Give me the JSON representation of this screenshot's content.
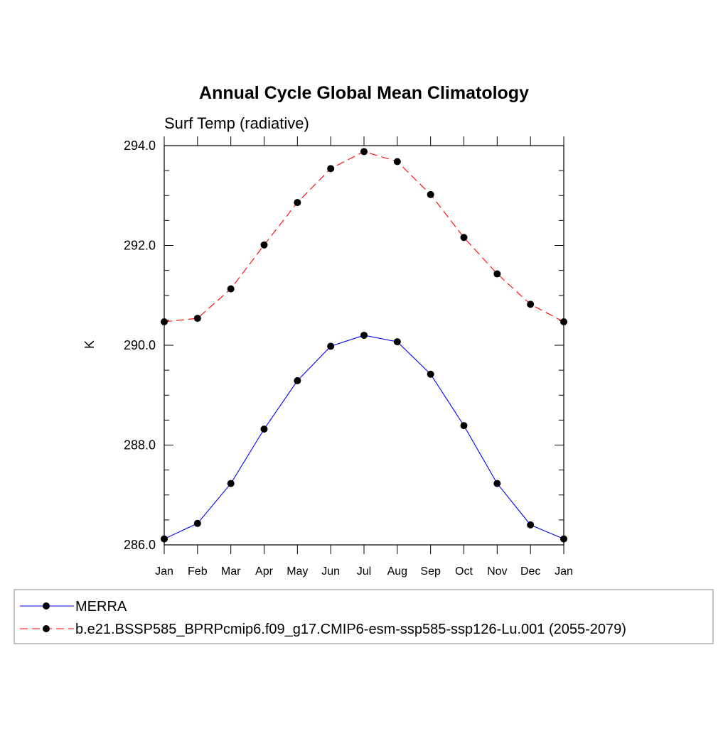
{
  "chart_data": {
    "type": "line",
    "title": "Annual Cycle Global Mean Climatology",
    "subtitle": "Surf Temp (radiative)",
    "xlabel": "",
    "ylabel": "K",
    "ylim": [
      286.0,
      294.0
    ],
    "y_ticks": [
      "286.0",
      "288.0",
      "290.0",
      "292.0",
      "294.0"
    ],
    "categories": [
      "Jan",
      "Feb",
      "Mar",
      "Apr",
      "May",
      "Jun",
      "Jul",
      "Aug",
      "Sep",
      "Oct",
      "Nov",
      "Dec",
      "Jan"
    ],
    "grid": false,
    "series": [
      {
        "name": "MERRA",
        "color": "#0000ff",
        "dash": "solid",
        "values": [
          286.12,
          286.43,
          287.23,
          288.32,
          289.29,
          289.98,
          290.2,
          290.07,
          289.42,
          288.39,
          287.23,
          286.4,
          286.12
        ]
      },
      {
        "name": "b.e21.BSSP585_BPRPcmip6.f09_g17.CMIP6-esm-ssp585-ssp126-Lu.001 (2055-2079)",
        "color": "#ff0000",
        "dash": "dashed",
        "values": [
          290.47,
          290.54,
          291.13,
          292.01,
          292.86,
          293.54,
          293.88,
          293.68,
          293.02,
          292.16,
          291.43,
          290.82,
          290.47
        ]
      }
    ]
  }
}
